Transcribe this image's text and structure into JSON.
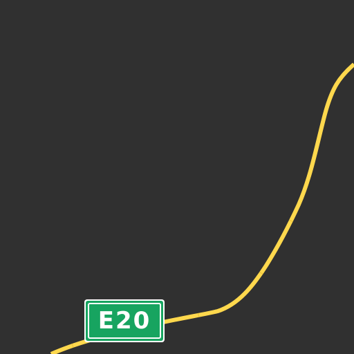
{
  "map": {
    "background_color": "#303030",
    "road": {
      "type": "highway",
      "color": "#ffd84d",
      "segment_joint_color": "#e6bf3a"
    },
    "route_shield": {
      "label": "E20",
      "fill_color": "#17a460",
      "border_color": "#ffffff",
      "text_color": "#ffffff"
    }
  }
}
